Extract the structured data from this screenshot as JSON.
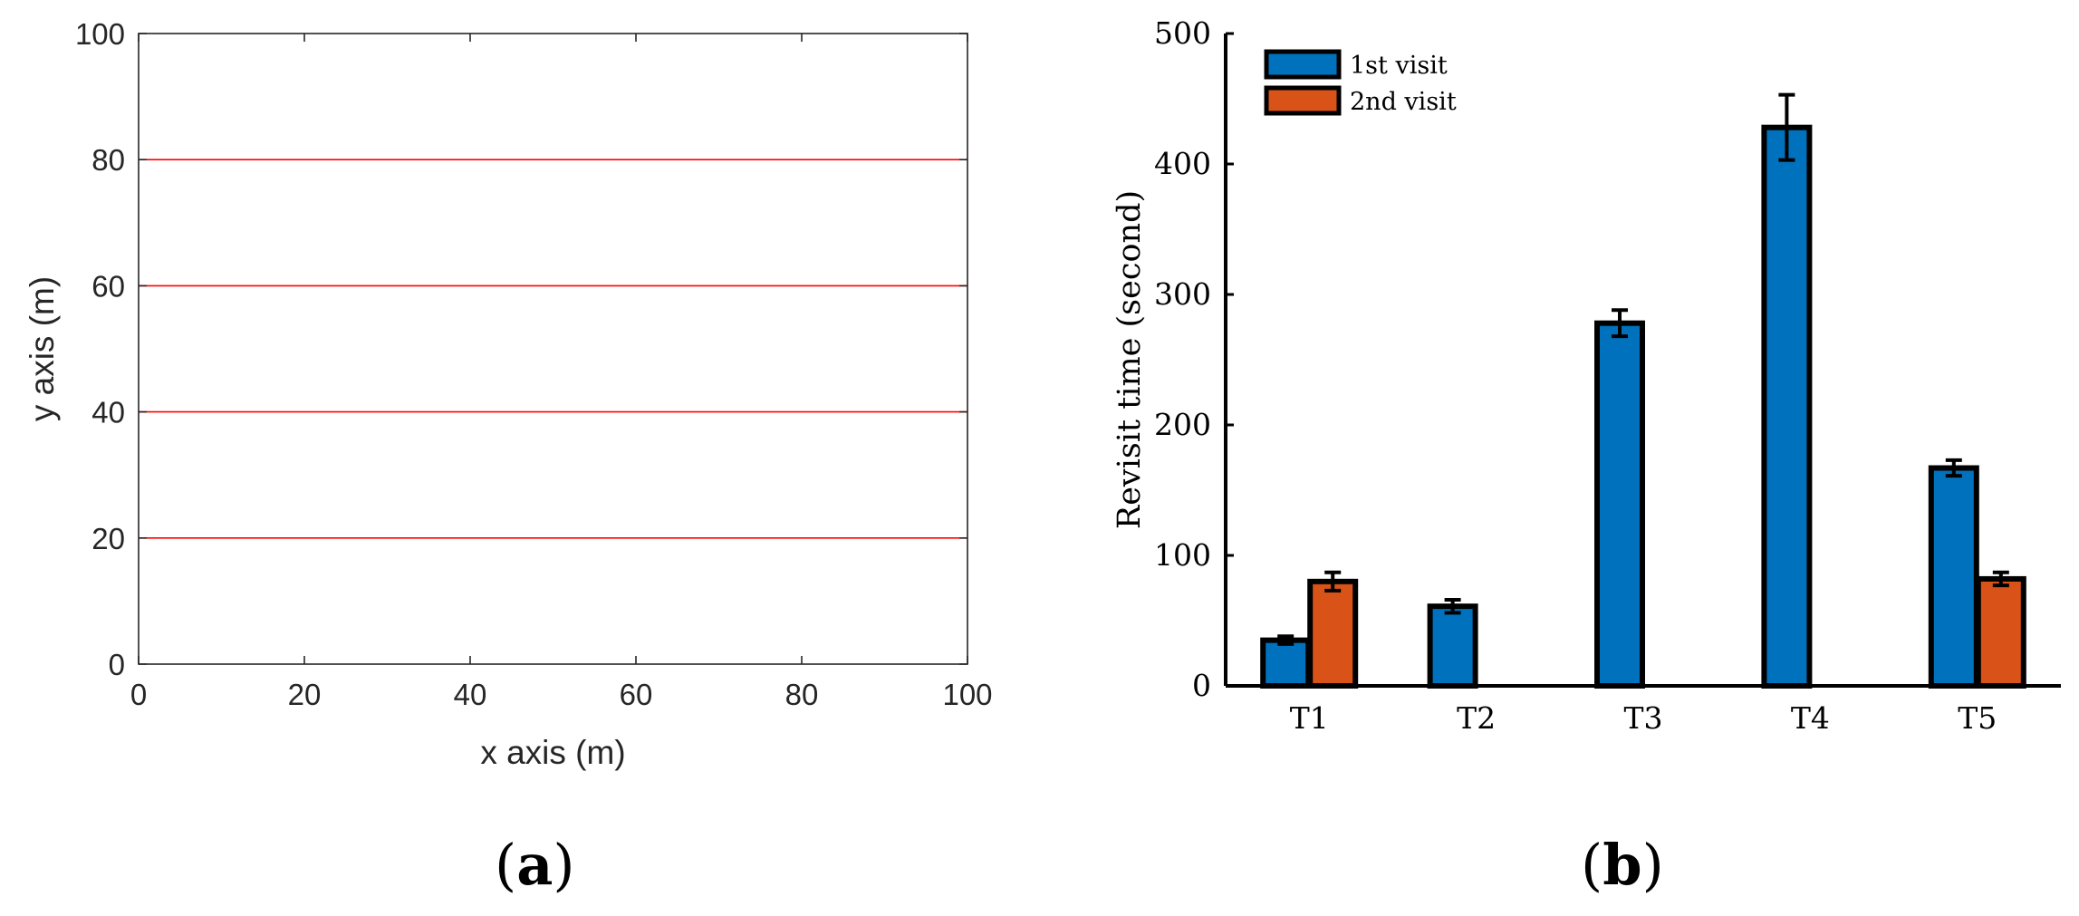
{
  "figure": {
    "panel_a_letter": "a",
    "panel_b_letter": "b"
  },
  "colors": {
    "series_1": "#0072BD",
    "series_2": "#D95319",
    "partition_line": "#FF0000",
    "axis": "#262626"
  },
  "chart_data": [
    {
      "type": "line",
      "panel": "a",
      "title": "",
      "xlabel": "x axis (m)",
      "ylabel": "y axis (m)",
      "xlim": [
        0,
        100
      ],
      "ylim": [
        0,
        100
      ],
      "xticks": [
        "0",
        "20",
        "40",
        "60",
        "80",
        "100"
      ],
      "yticks": [
        "0",
        "20",
        "40",
        "60",
        "80",
        "100"
      ],
      "grid": false,
      "box": true,
      "series": [
        {
          "x": [
            0,
            100
          ],
          "y": [
            20,
            20
          ]
        },
        {
          "x": [
            0,
            100
          ],
          "y": [
            40,
            40
          ]
        },
        {
          "x": [
            0,
            100
          ],
          "y": [
            60,
            60
          ]
        },
        {
          "x": [
            0,
            100
          ],
          "y": [
            80,
            80
          ]
        }
      ]
    },
    {
      "type": "bar",
      "panel": "b",
      "title": "",
      "xlabel": "",
      "ylabel": "Revisit time (second)",
      "ylim": [
        0,
        500
      ],
      "yticks": [
        "0",
        "100",
        "200",
        "300",
        "400",
        "500"
      ],
      "categories": [
        "T1",
        "T2",
        "T3",
        "T4",
        "T5"
      ],
      "grid": false,
      "legend_position": "top-left",
      "series": [
        {
          "name": "1st visit",
          "values": [
            35,
            61,
            278,
            428,
            167
          ],
          "error": [
            3,
            5,
            10,
            25,
            6
          ]
        },
        {
          "name": "2nd visit",
          "values": [
            80,
            null,
            null,
            null,
            82
          ],
          "error": [
            7,
            null,
            null,
            null,
            5
          ]
        }
      ]
    }
  ]
}
